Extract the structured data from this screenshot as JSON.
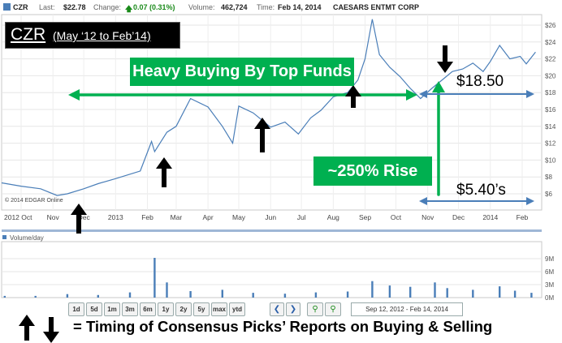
{
  "header": {
    "ticker": "CZR",
    "last_label": "Last:",
    "last": "$22.78",
    "change_label": "Change:",
    "change": "0.07 (0.31%)",
    "volume_label": "Volume:",
    "volume": "462,724",
    "time_label": "Time:",
    "time": "Feb 14, 2014",
    "company": "CAESARS ENTMT CORP"
  },
  "title_box": {
    "ticker": "CZR",
    "range": "(May ‘12 to Feb’14)"
  },
  "annotations": {
    "heavy_buying": "Heavy Buying By Top Funds",
    "rise": "~250% Rise",
    "high_price": "$18.50",
    "low_price": "$5.40’s"
  },
  "watermark": "© 2014 EDGAR Online",
  "volume_label": "Volume/day",
  "controls": {
    "ranges": [
      "1d",
      "5d",
      "1m",
      "3m",
      "6m",
      "1y",
      "2y",
      "5y",
      "max",
      "ytd"
    ],
    "date_range": "Sep 12, 2012 - Feb 14, 2014"
  },
  "legend_text": "= Timing of Consensus Picks’ Reports on Buying & Selling",
  "colors": {
    "price_line": "#4a7eb8",
    "volume_bars": "#4a7eb8",
    "green": "#00b050",
    "up_change": "#1a8a1a"
  },
  "chart_data": [
    {
      "type": "line",
      "title": "CZR",
      "ylim": [
        4,
        27
      ],
      "y_ticks": [
        "$26",
        "$24",
        "$22",
        "$20",
        "$18",
        "$16",
        "$14",
        "$12",
        "$10",
        "$8",
        "$6"
      ],
      "x_ticks": [
        "2012 Oct",
        "Nov",
        "Dec",
        "2013",
        "Feb",
        "Mar",
        "Apr",
        "May",
        "Jun",
        "Jul",
        "Aug",
        "Sep",
        "Oct",
        "Nov",
        "Dec",
        "2014",
        "Feb"
      ],
      "grid": true,
      "x": [
        "2012-09-12",
        "2012-10-01",
        "2012-10-20",
        "2012-11-05",
        "2012-11-15",
        "2012-12-01",
        "2012-12-15",
        "2013-01-01",
        "2013-01-25",
        "2013-02-05",
        "2013-02-08",
        "2013-02-20",
        "2013-03-01",
        "2013-03-15",
        "2013-04-01",
        "2013-04-15",
        "2013-04-25",
        "2013-05-01",
        "2013-05-15",
        "2013-06-01",
        "2013-06-15",
        "2013-06-28",
        "2013-07-10",
        "2013-07-20",
        "2013-08-01",
        "2013-08-15",
        "2013-08-25",
        "2013-09-01",
        "2013-09-08",
        "2013-09-15",
        "2013-09-25",
        "2013-10-05",
        "2013-10-15",
        "2013-10-25",
        "2013-11-05",
        "2013-11-15",
        "2013-11-25",
        "2013-12-05",
        "2013-12-15",
        "2013-12-25",
        "2014-01-01",
        "2014-01-10",
        "2014-01-20",
        "2014-01-30",
        "2014-02-05",
        "2014-02-14"
      ],
      "y": [
        7.3,
        6.9,
        6.6,
        5.8,
        6.0,
        6.6,
        7.2,
        7.8,
        8.7,
        12.2,
        11.0,
        13.3,
        14.0,
        17.3,
        16.3,
        14.0,
        12.0,
        16.4,
        15.6,
        13.9,
        14.5,
        13.1,
        15.0,
        15.9,
        17.5,
        18.0,
        19.5,
        22.0,
        26.7,
        22.5,
        21.0,
        19.9,
        18.5,
        17.3,
        18.5,
        19.5,
        20.5,
        20.8,
        21.5,
        20.5,
        21.7,
        23.6,
        22.0,
        22.3,
        21.4,
        22.8
      ]
    },
    {
      "type": "bar",
      "title": "Volume/day",
      "y_ticks": [
        "9M",
        "6M",
        "3M",
        "0M"
      ],
      "ylim": [
        0,
        9.5
      ],
      "x": [
        "2012-09-15",
        "2012-10-15",
        "2012-11-15",
        "2012-12-15",
        "2013-01-15",
        "2013-02-08",
        "2013-02-20",
        "2013-03-15",
        "2013-04-15",
        "2013-05-15",
        "2013-06-15",
        "2013-07-15",
        "2013-08-15",
        "2013-09-08",
        "2013-09-25",
        "2013-10-15",
        "2013-11-08",
        "2013-11-20",
        "2013-12-15",
        "2014-01-10",
        "2014-01-25",
        "2014-02-10"
      ],
      "values": [
        0.4,
        0.4,
        0.8,
        0.6,
        1.2,
        9.2,
        3.5,
        1.5,
        1.8,
        1.1,
        0.9,
        1.2,
        1.4,
        3.8,
        2.8,
        2.5,
        3.5,
        2.2,
        1.8,
        2.6,
        1.6,
        1.1
      ]
    }
  ]
}
